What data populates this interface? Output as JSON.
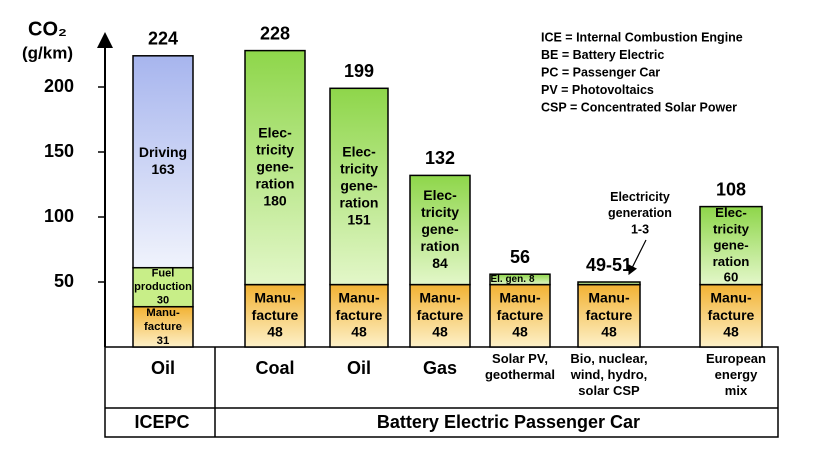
{
  "chart_data": {
    "type": "stacked_bar",
    "y_label": "CO₂",
    "y_unit": "(g/km)",
    "ylim": [
      0,
      240
    ],
    "yticks": [
      50,
      100,
      150,
      200
    ],
    "categories": [
      "Oil",
      "Coal",
      "Oil",
      "Gas",
      "Solar PV,\ngeothermal",
      "Bio, nuclear,\nwind, hydro,\nsolar CSP",
      "European\nenergy\nmix"
    ],
    "groups": [
      {
        "label": "ICEPC",
        "span": 1
      },
      {
        "label": "Battery Electric Passenger Car",
        "span": 6
      }
    ],
    "series": [
      {
        "color": "#f2b233",
        "gradient_end": "#fdf0c8",
        "values": [
          31,
          48,
          48,
          48,
          48,
          48,
          48
        ],
        "labels": [
          "Manu-\nfacture",
          "Manu-\nfacture",
          "Manu-\nfacture",
          "Manu-\nfacture",
          "Manu-\nfacture",
          "Manu-\nfacture",
          "Manu-\nfacture"
        ]
      },
      {
        "color": "#c8ee88",
        "gradient_end": "#c8ee88",
        "values": [
          30,
          null,
          null,
          null,
          null,
          null,
          null
        ],
        "labels": [
          "Fuel\nproduction",
          null,
          null,
          null,
          null,
          null,
          null
        ]
      },
      {
        "color": "#a7b5ee",
        "gradient_end": "#f0f3fc",
        "values": [
          163,
          null,
          null,
          null,
          null,
          null,
          null
        ],
        "labels": [
          "Driving",
          null,
          null,
          null,
          null,
          null,
          null
        ]
      },
      {
        "color": "#8ed64a",
        "gradient_end": "#e3f7c9",
        "values": [
          null,
          180,
          151,
          84,
          8,
          2,
          60
        ],
        "value_labels": [
          null,
          null,
          null,
          null,
          null,
          "1-3",
          null
        ],
        "labels": [
          null,
          "Elec-\ntricity\ngene-\nration",
          "Elec-\ntricity\ngene-\nration",
          "Elec-\ntricity\ngene-\nration",
          "El. gen.",
          null,
          "Elec-\ntricity\ngene-\nration"
        ]
      }
    ],
    "totals": [
      224,
      228,
      199,
      132,
      56,
      50,
      108
    ],
    "total_labels": [
      null,
      null,
      null,
      null,
      null,
      "49-51",
      null
    ],
    "annotation": "Electricity\ngeneration",
    "notes": [
      "ICE = Internal Combustion Engine",
      "BE = Battery Electric",
      "PC = Passenger Car",
      "PV = Photovoltaics",
      "CSP = Concentrated Solar Power"
    ]
  }
}
